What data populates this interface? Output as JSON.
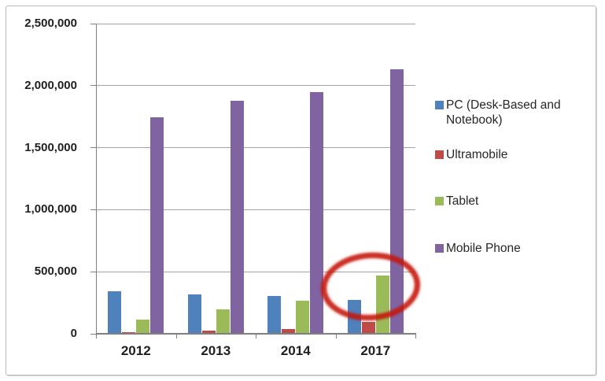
{
  "chart_data": {
    "type": "bar",
    "title": "",
    "categories": [
      "2012",
      "2013",
      "2014",
      "2017"
    ],
    "series": [
      {
        "name": "PC (Desk-Based and Notebook)",
        "color": "#4F81BD",
        "values": [
          341000,
          315000,
          302000,
          272000
        ]
      },
      {
        "name": "Ultramobile",
        "color": "#BE4B48",
        "values": [
          10000,
          24000,
          39000,
          96000
        ]
      },
      {
        "name": "Tablet",
        "color": "#9BBB59",
        "values": [
          116000,
          197000,
          266000,
          468000
        ]
      },
      {
        "name": "Mobile Phone",
        "color": "#8064A2",
        "values": [
          1746000,
          1876000,
          1950000,
          2129000
        ]
      }
    ],
    "xlabel": "",
    "ylabel": "",
    "ylim": [
      0,
      2500000
    ],
    "ytick_interval": 500000,
    "ytick_labels": [
      "0",
      "500,000",
      "1,000,000",
      "1,500,000",
      "2,000,000",
      "2,500,000"
    ],
    "grid": true,
    "legend_position": "right",
    "annotation": {
      "shape": "ellipse",
      "color": "#C5160A",
      "circles": "2017 Tablet bar"
    }
  }
}
